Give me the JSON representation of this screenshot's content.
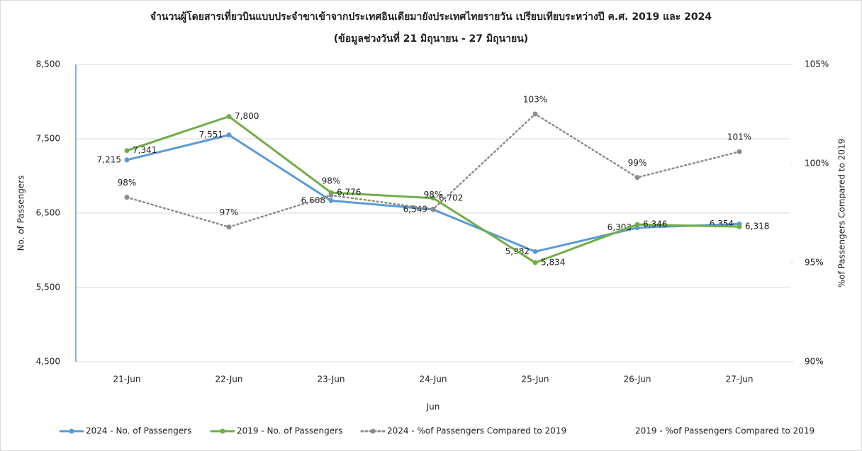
{
  "chart_data": {
    "type": "line",
    "title": "จำนวนผู้โดยสารเที่ยวบินแบบประจำขาเข้าจากประเทศอินเดียมายังประเทศไทยรายวัน เปรียบเทียบระหว่างปี ค.ศ. 2019 และ 2024",
    "subtitle": "(ข้อมูลช่วงวันที่ 21 มิถุนายน - 27 มิถุนายน)",
    "x_label": "Jun",
    "y_label": "No. of Passengers",
    "y2_label": "%of Passengers Compared to 2019",
    "categories": [
      "21-Jun",
      "22-Jun",
      "23-Jun",
      "24-Jun",
      "25-Jun",
      "26-Jun",
      "27-Jun"
    ],
    "ylim": [
      4500,
      8500
    ],
    "yticks": [
      {
        "value": 4500,
        "label": "4,500"
      },
      {
        "value": 5500,
        "label": "5,500"
      },
      {
        "value": 6500,
        "label": "6,500"
      },
      {
        "value": 7500,
        "label": "7,500"
      },
      {
        "value": 8500,
        "label": "8,500"
      }
    ],
    "y2lim": [
      90,
      105
    ],
    "y2ticks": [
      {
        "value": 90,
        "label": "90%"
      },
      {
        "value": 95,
        "label": "95%"
      },
      {
        "value": 100,
        "label": "100%"
      },
      {
        "value": 105,
        "label": "105%"
      }
    ],
    "grid": true,
    "legend": "bottom",
    "series": [
      {
        "name": "2024 - No. of Passengers",
        "color": "#5b9bd5",
        "values": [
          7215,
          7551,
          6668,
          6549,
          5982,
          6303,
          6354
        ],
        "value_labels": [
          "7,215",
          "7,551",
          "6,668",
          "6,549",
          "5,982",
          "6,303",
          "6,354"
        ],
        "label_side": "left"
      },
      {
        "name": "2019 - No. of Passengers",
        "color": "#70ad47",
        "values": [
          7341,
          7800,
          6776,
          6702,
          5834,
          6346,
          6318
        ],
        "value_labels": [
          "7,341",
          "7,800",
          "6,776",
          "6,702",
          "5,834",
          "6,346",
          "6,318"
        ],
        "label_side": "right"
      },
      {
        "name": "2024 - %of Passengers Compared to 2019",
        "color": "#8c8c8c",
        "axis": "y2",
        "dash": "dotted",
        "values": [
          98.3,
          96.8,
          98.4,
          97.7,
          102.5,
          99.3,
          100.6
        ],
        "value_labels": [
          "98%",
          "97%",
          "98%",
          "98%",
          "103%",
          "99%",
          "101%"
        ],
        "label_side": "top"
      },
      {
        "name": "2019 - %of Passengers Compared to 2019",
        "axis": "y2",
        "values": [
          null,
          null,
          null,
          null,
          null,
          null,
          null
        ]
      }
    ]
  }
}
